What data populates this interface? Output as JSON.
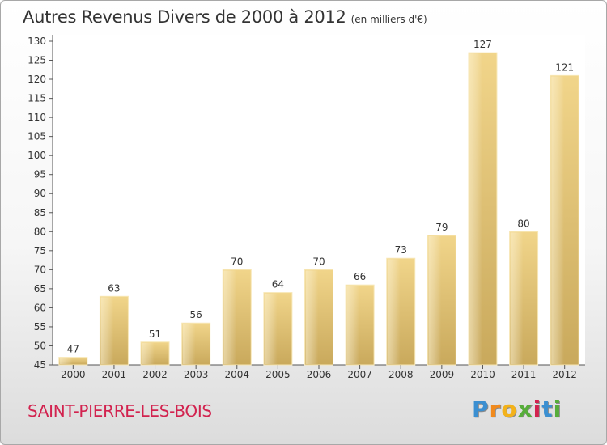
{
  "header": {
    "title": "Autres Revenus Divers de 2000 à 2012",
    "subtitle": "(en milliers d'€)"
  },
  "footer": {
    "commune": "SAINT-PIERRE-LES-BOIS",
    "logo_letters": [
      "P",
      "r",
      "o",
      "x",
      "i",
      "t",
      "i"
    ],
    "logo_colors": [
      "#3b8fd1",
      "#f18a1c",
      "#f3b21a",
      "#56ad3a",
      "#d2234f",
      "#3b8fd1",
      "#56ad3a"
    ]
  },
  "chart_data": {
    "type": "bar",
    "categories": [
      "2000",
      "2001",
      "2002",
      "2003",
      "2004",
      "2005",
      "2006",
      "2007",
      "2008",
      "2009",
      "2010",
      "2011",
      "2012"
    ],
    "values": [
      47,
      63,
      51,
      56,
      70,
      64,
      70,
      66,
      73,
      79,
      127,
      80,
      121
    ],
    "data_labels": [
      "47",
      "63",
      "51",
      "56",
      "70",
      "64",
      "70",
      "66",
      "73",
      "79",
      "127",
      "80",
      "121"
    ],
    "yticks": [
      45,
      50,
      55,
      60,
      65,
      70,
      75,
      80,
      85,
      90,
      95,
      100,
      105,
      110,
      115,
      120,
      125,
      130
    ],
    "ylim": [
      45,
      130
    ],
    "grid": false,
    "bar_color": "#f1d58a",
    "bar_color_dark": "#c9a95c"
  }
}
